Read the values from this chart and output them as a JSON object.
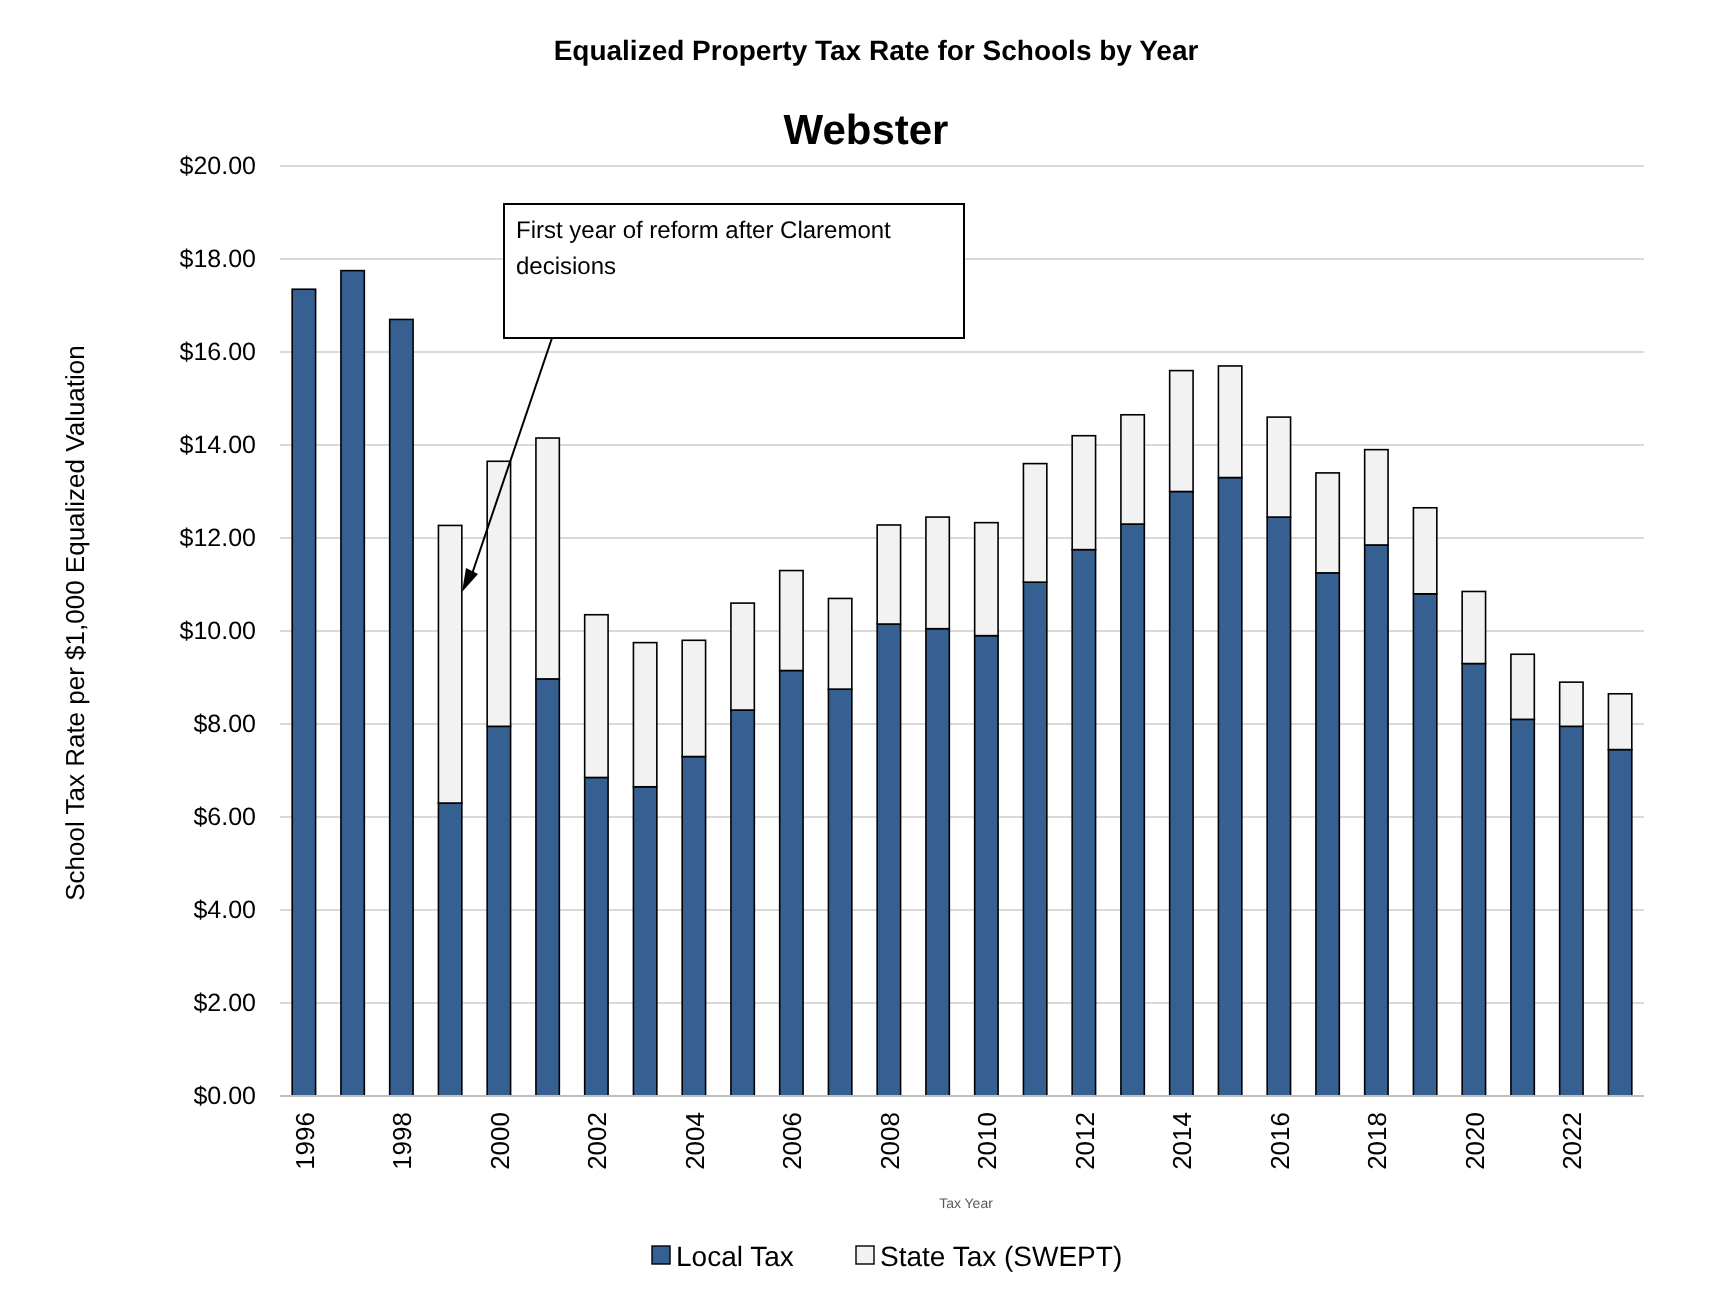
{
  "chart_data": {
    "type": "bar",
    "title": "Equalized Property Tax Rate for Schools by Year",
    "subtitle": "Webster",
    "xlabel": "Tax Year",
    "ylabel": "School Tax Rate per $1,000 Equalized Valuation",
    "categories": [
      "1996",
      null,
      "1998",
      null,
      "2000",
      null,
      "2002",
      null,
      "2004",
      null,
      "2006",
      null,
      "2008",
      null,
      "2010",
      null,
      "2012",
      null,
      "2014",
      null,
      "2016",
      null,
      "2018",
      null,
      "2020",
      null,
      "2022",
      null
    ],
    "stacked": true,
    "series": [
      {
        "name": "Local Tax",
        "color": "#366092",
        "values": [
          17.35,
          17.75,
          16.7,
          6.3,
          7.95,
          8.97,
          6.85,
          6.65,
          7.3,
          8.3,
          9.15,
          8.75,
          10.15,
          10.05,
          9.9,
          11.05,
          11.75,
          12.3,
          13.0,
          13.3,
          12.45,
          11.25,
          11.85,
          10.8,
          9.3,
          8.1,
          7.95,
          7.45
        ]
      },
      {
        "name": "State Tax (SWEPT)",
        "color": "#f2f2f2",
        "values": [
          null,
          null,
          null,
          5.97,
          5.7,
          5.18,
          3.5,
          3.1,
          2.5,
          2.3,
          2.15,
          1.95,
          2.13,
          2.4,
          2.43,
          2.55,
          2.45,
          2.35,
          2.6,
          2.4,
          2.15,
          2.15,
          2.05,
          1.85,
          1.55,
          1.4,
          0.95,
          1.2
        ]
      }
    ],
    "ylim": [
      0,
      20
    ],
    "yticks": [
      {
        "value": 0,
        "label": "$0.00"
      },
      {
        "value": 2,
        "label": "$2.00"
      },
      {
        "value": 4,
        "label": "$4.00"
      },
      {
        "value": 6,
        "label": "$6.00"
      },
      {
        "value": 8,
        "label": "$8.00"
      },
      {
        "value": 10,
        "label": "$10.00"
      },
      {
        "value": 12,
        "label": "$12.00"
      },
      {
        "value": 14,
        "label": "$14.00"
      },
      {
        "value": 16,
        "label": "$16.00"
      },
      {
        "value": 18,
        "label": "$18.00"
      },
      {
        "value": 20,
        "label": "$20.00"
      }
    ],
    "grid": "y",
    "legend": "bottom",
    "annotations": [
      "First year of reform after Claremont decisions"
    ]
  }
}
